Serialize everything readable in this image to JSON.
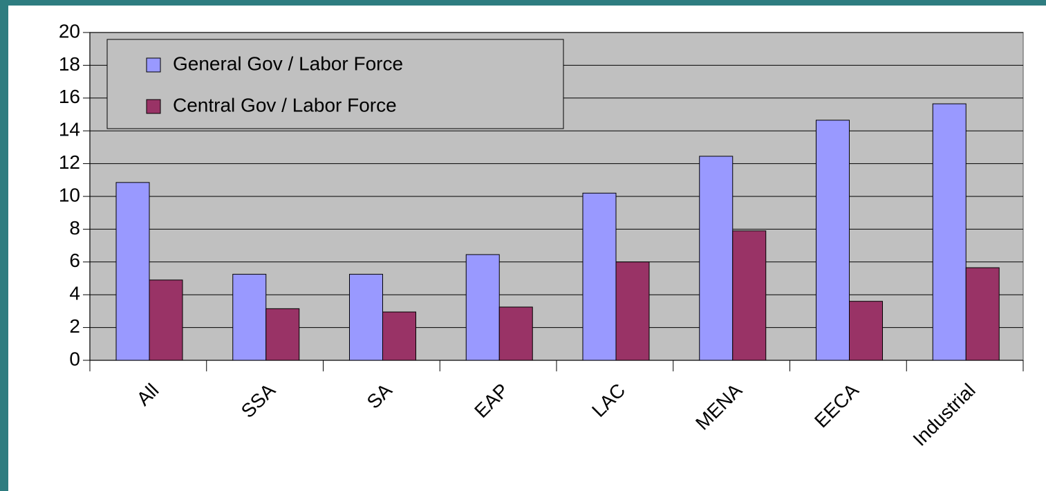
{
  "chart_data": {
    "type": "bar",
    "categories": [
      "All",
      "SSA",
      "SA",
      "EAP",
      "LAC",
      "MENA",
      "EECA",
      "Industrial"
    ],
    "series": [
      {
        "name": "General Gov / Labor Force",
        "color": "#9999ff",
        "values": [
          10.85,
          5.25,
          5.25,
          6.45,
          10.2,
          12.45,
          14.65,
          15.65
        ]
      },
      {
        "name": "Central Gov / Labor Force",
        "color": "#993366",
        "values": [
          4.9,
          3.15,
          2.95,
          3.25,
          6.0,
          7.9,
          3.6,
          5.65
        ]
      }
    ],
    "ylim": [
      0,
      20
    ],
    "yticks": [
      0,
      2,
      4,
      6,
      8,
      10,
      12,
      14,
      16,
      18,
      20
    ],
    "grid": true,
    "legend": "upper left"
  }
}
